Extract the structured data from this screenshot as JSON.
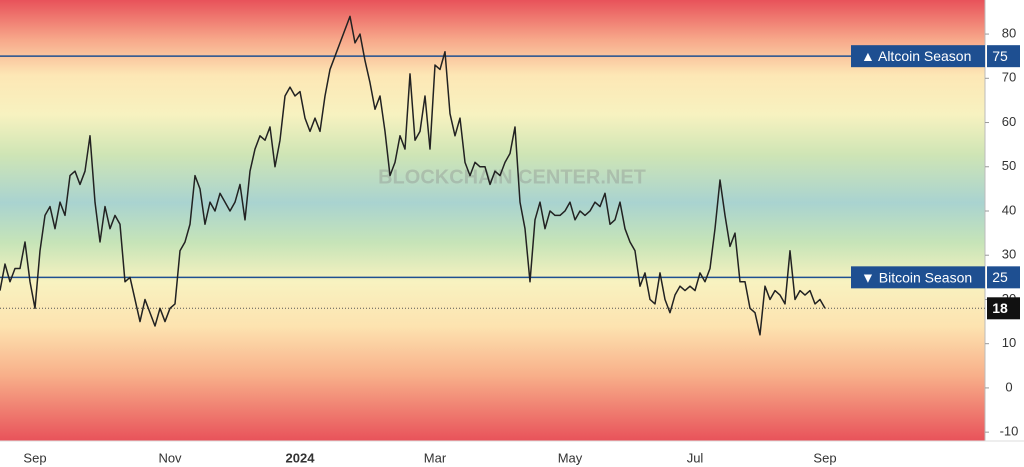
{
  "chart_data": {
    "type": "line",
    "watermark": "BLOCKCHAIN CENTER.NET",
    "categories": [
      null,
      null,
      null,
      null,
      null,
      null,
      null,
      "Sep",
      null,
      null,
      null,
      null,
      null,
      null,
      null,
      null,
      null,
      null,
      null,
      null,
      null,
      null,
      null,
      null,
      null,
      null,
      null,
      null,
      null,
      null,
      null,
      null,
      null,
      null,
      "Nov",
      null,
      null,
      null,
      null,
      null,
      null,
      null,
      null,
      null,
      null,
      null,
      null,
      null,
      null,
      null,
      null,
      null,
      null,
      null,
      null,
      null,
      null,
      null,
      null,
      null,
      "2024",
      null,
      null,
      null,
      null,
      null,
      null,
      null,
      null,
      null,
      null,
      null,
      null,
      null,
      null,
      null,
      null,
      null,
      null,
      null,
      null,
      null,
      null,
      null,
      null,
      null,
      null,
      "Mar",
      null,
      null,
      null,
      null,
      null,
      null,
      null,
      null,
      null,
      null,
      null,
      null,
      null,
      null,
      null,
      null,
      null,
      null,
      null,
      null,
      null,
      null,
      null,
      null,
      null,
      null,
      "May",
      null,
      null,
      null,
      null,
      null,
      null,
      null,
      null,
      null,
      null,
      null,
      null,
      null,
      null,
      null,
      null,
      null,
      null,
      null,
      null,
      null,
      null,
      null,
      null,
      "Jul",
      null,
      null,
      null,
      null,
      null,
      null,
      null,
      null,
      null,
      null,
      null,
      null,
      null,
      null,
      null,
      null,
      null,
      null,
      null,
      null,
      null,
      null,
      null,
      null,
      null,
      "Sep"
    ],
    "series": [
      {
        "color": "#222222",
        "values": [
          22,
          28,
          24,
          27,
          27,
          33,
          24,
          18,
          31,
          39,
          41,
          36,
          42,
          39,
          48,
          49,
          46,
          49,
          57,
          42,
          33,
          41,
          36,
          39,
          37,
          24,
          25,
          20,
          15,
          20,
          17,
          14,
          18,
          15,
          18,
          19,
          31,
          33,
          37,
          48,
          45,
          37,
          42,
          40,
          44,
          42,
          40,
          42,
          46,
          38,
          49,
          54,
          57,
          56,
          59,
          50,
          56,
          66,
          68,
          66,
          67,
          61,
          58,
          61,
          58,
          66,
          72,
          75,
          78,
          81,
          84,
          78,
          80,
          74,
          69,
          63,
          66,
          58,
          48,
          51,
          57,
          54,
          71,
          56,
          58,
          66,
          54,
          73,
          72,
          76,
          62,
          57,
          61,
          51,
          48,
          51,
          50,
          50,
          46,
          49,
          48,
          51,
          53,
          59,
          42,
          36,
          24,
          38,
          42,
          36,
          40,
          39,
          39,
          40,
          42,
          38,
          40,
          39,
          40,
          42,
          41,
          44,
          37,
          38,
          42,
          36,
          33,
          31,
          23,
          26,
          20,
          19,
          26,
          20,
          17,
          21,
          23,
          22,
          23,
          22,
          26,
          24,
          27,
          36,
          47,
          39,
          32,
          35,
          24,
          24,
          18,
          17,
          12,
          23,
          20,
          22,
          21,
          19,
          31,
          20,
          22,
          21,
          22,
          19,
          20,
          18
        ]
      }
    ],
    "thresholds": [
      {
        "symbol": "▲",
        "label": "Altcoin Season",
        "value": 75,
        "color": "#1e4f91"
      },
      {
        "symbol": "▼",
        "label": "Bitcoin Season",
        "value": 25,
        "color": "#1e4f91"
      }
    ],
    "current": 18,
    "ylim": [
      -12,
      87.7
    ],
    "yticks": [
      -10,
      0,
      10,
      20,
      30,
      40,
      50,
      60,
      70,
      80
    ]
  }
}
